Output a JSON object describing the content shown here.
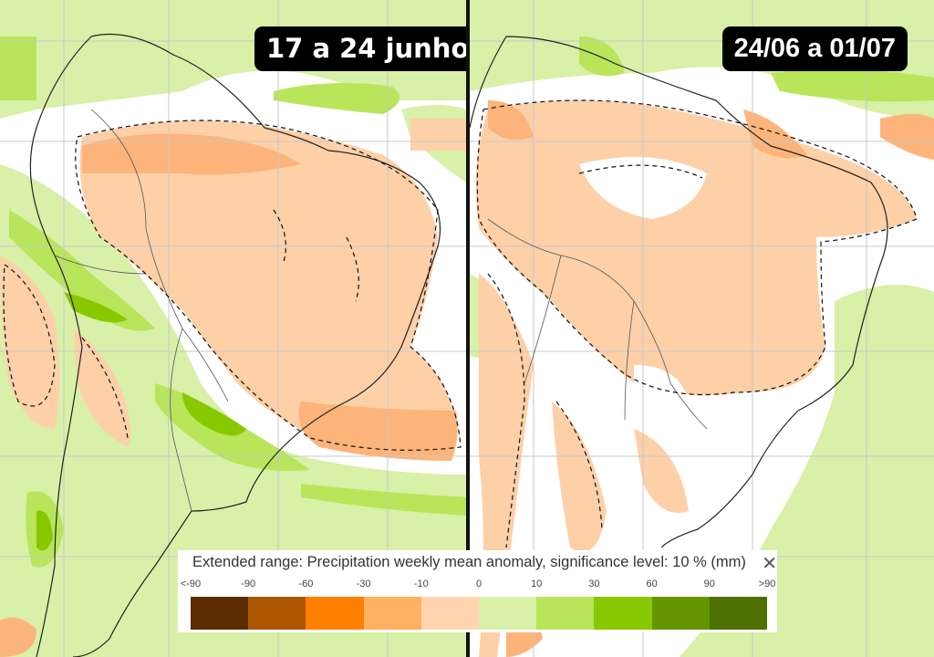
{
  "panels": [
    {
      "period_label": "17 a 24 junho"
    },
    {
      "period_label": "24/06 a 01/07"
    }
  ],
  "legend": {
    "title": "Extended range: Precipitation weekly mean anomaly, significance level: 10 % (mm)",
    "close_icon": "close-icon",
    "close_label": "✕",
    "tick_labels": [
      "<-90",
      "-90",
      "-60",
      "-30",
      "-10",
      "0",
      "10",
      "30",
      "60",
      "90",
      ">90"
    ],
    "colors": [
      "#5a2c00",
      "#ad5600",
      "#ff8000",
      "#ffb061",
      "#ffd5b0",
      "#d8f0a8",
      "#b8e55a",
      "#88c800",
      "#649600",
      "#4e7000"
    ]
  }
}
